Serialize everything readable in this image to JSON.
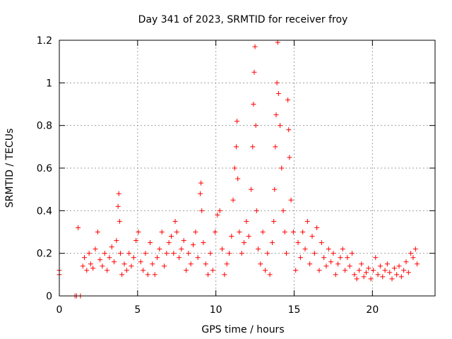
{
  "chart_data": {
    "type": "scatter",
    "title": "Day 341 of 2023, SRMTID for receiver froy",
    "xlabel": "GPS time / hours",
    "ylabel": "SRMTID / TECUs",
    "xlim": [
      0,
      24
    ],
    "ylim": [
      0,
      1.2
    ],
    "xticks": [
      0,
      5,
      10,
      15,
      20
    ],
    "xtick_labels": [
      "0",
      "5",
      "10",
      "15",
      "20"
    ],
    "yticks": [
      0,
      0.2,
      0.4,
      0.6,
      0.8,
      1.0,
      1.2
    ],
    "ytick_labels": [
      "0",
      "0.2",
      "0.4",
      "0.6",
      "0.8",
      "1",
      "1.2"
    ],
    "grid": true,
    "marker": "+",
    "series": [
      {
        "name": "SRMTID",
        "color": "#ff0000",
        "x": [
          0.0,
          0.0,
          1.0,
          1.1,
          1.2,
          1.35,
          1.5,
          1.6,
          1.75,
          1.9,
          2.0,
          2.15,
          2.3,
          2.45,
          2.6,
          2.75,
          2.9,
          3.05,
          3.2,
          3.35,
          3.5,
          3.65,
          3.75,
          3.8,
          3.85,
          3.9,
          4.0,
          4.15,
          4.3,
          4.45,
          4.6,
          4.75,
          4.9,
          5.05,
          5.2,
          5.35,
          5.5,
          5.65,
          5.8,
          5.95,
          6.1,
          6.25,
          6.4,
          6.55,
          6.7,
          6.85,
          7.0,
          7.15,
          7.3,
          7.4,
          7.5,
          7.65,
          7.8,
          7.95,
          8.1,
          8.25,
          8.4,
          8.55,
          8.7,
          8.85,
          9.0,
          9.05,
          9.1,
          9.2,
          9.35,
          9.5,
          9.65,
          9.8,
          9.95,
          10.1,
          10.25,
          10.4,
          10.55,
          10.7,
          10.85,
          11.0,
          11.1,
          11.2,
          11.3,
          11.35,
          11.4,
          11.5,
          11.65,
          11.8,
          11.95,
          12.1,
          12.25,
          12.35,
          12.4,
          12.45,
          12.5,
          12.55,
          12.6,
          12.7,
          12.85,
          13.0,
          13.15,
          13.3,
          13.45,
          13.6,
          13.7,
          13.75,
          13.8,
          13.85,
          13.9,
          13.95,
          14.0,
          14.1,
          14.2,
          14.3,
          14.4,
          14.5,
          14.6,
          14.65,
          14.7,
          14.8,
          14.95,
          15.1,
          15.25,
          15.4,
          15.55,
          15.7,
          15.85,
          16.0,
          16.15,
          16.3,
          16.45,
          16.6,
          16.75,
          16.9,
          17.05,
          17.2,
          17.35,
          17.5,
          17.65,
          17.8,
          17.95,
          18.1,
          18.25,
          18.4,
          18.55,
          18.7,
          18.85,
          19.0,
          19.15,
          19.3,
          19.45,
          19.6,
          19.75,
          19.9,
          20.05,
          20.2,
          20.35,
          20.5,
          20.65,
          20.8,
          20.95,
          21.1,
          21.25,
          21.4,
          21.55,
          21.7,
          21.85,
          22.0,
          22.15,
          22.3,
          22.45,
          22.6,
          22.75,
          22.85
        ],
        "y": [
          0.12,
          0.1,
          0.0,
          0.0,
          0.32,
          0.0,
          0.14,
          0.18,
          0.12,
          0.2,
          0.15,
          0.13,
          0.22,
          0.3,
          0.17,
          0.14,
          0.2,
          0.12,
          0.18,
          0.23,
          0.16,
          0.26,
          0.42,
          0.48,
          0.35,
          0.2,
          0.1,
          0.15,
          0.12,
          0.2,
          0.14,
          0.18,
          0.26,
          0.3,
          0.16,
          0.12,
          0.2,
          0.1,
          0.25,
          0.15,
          0.1,
          0.18,
          0.22,
          0.3,
          0.14,
          0.2,
          0.25,
          0.28,
          0.2,
          0.35,
          0.3,
          0.18,
          0.22,
          0.26,
          0.12,
          0.2,
          0.15,
          0.24,
          0.3,
          0.18,
          0.48,
          0.53,
          0.4,
          0.25,
          0.15,
          0.1,
          0.2,
          0.12,
          0.3,
          0.38,
          0.4,
          0.22,
          0.1,
          0.15,
          0.2,
          0.28,
          0.45,
          0.6,
          0.7,
          0.82,
          0.55,
          0.3,
          0.2,
          0.25,
          0.35,
          0.28,
          0.5,
          0.7,
          0.9,
          1.05,
          1.17,
          0.8,
          0.4,
          0.22,
          0.15,
          0.3,
          0.12,
          0.2,
          0.1,
          0.25,
          0.35,
          0.5,
          0.7,
          0.85,
          1.0,
          1.19,
          0.95,
          0.8,
          0.6,
          0.4,
          0.3,
          0.2,
          0.92,
          0.78,
          0.65,
          0.45,
          0.3,
          0.12,
          0.25,
          0.18,
          0.3,
          0.22,
          0.35,
          0.15,
          0.28,
          0.2,
          0.32,
          0.12,
          0.25,
          0.18,
          0.14,
          0.22,
          0.16,
          0.2,
          0.1,
          0.15,
          0.18,
          0.22,
          0.12,
          0.18,
          0.14,
          0.2,
          0.1,
          0.08,
          0.12,
          0.15,
          0.09,
          0.11,
          0.13,
          0.08,
          0.12,
          0.18,
          0.1,
          0.14,
          0.09,
          0.12,
          0.15,
          0.11,
          0.08,
          0.13,
          0.1,
          0.14,
          0.09,
          0.12,
          0.16,
          0.11,
          0.2,
          0.18,
          0.22,
          0.15
        ]
      }
    ]
  }
}
